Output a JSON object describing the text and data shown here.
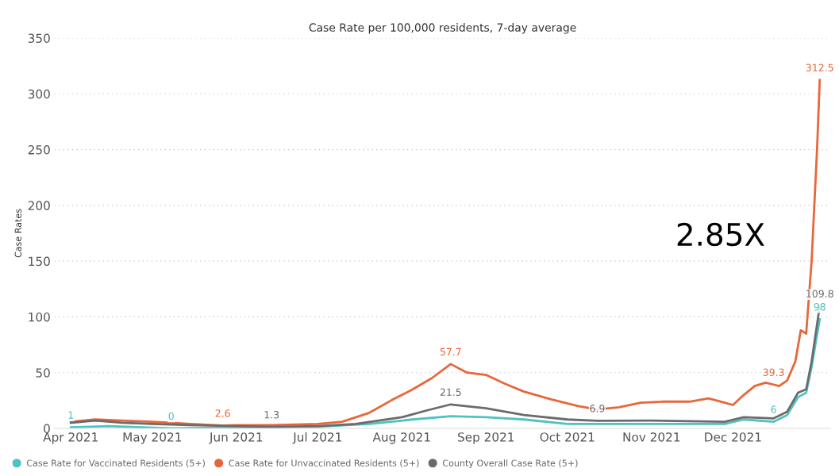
{
  "chart_data": {
    "type": "line",
    "title": "Case Rate per 100,000 residents, 7-day average",
    "ylabel": "Case Rates",
    "annotations": [
      "2.85X"
    ],
    "xlim": [
      "2021-03-26",
      "2022-01-06"
    ],
    "ylim": [
      0,
      350
    ],
    "yticks": [
      0,
      50,
      100,
      150,
      200,
      250,
      300,
      350
    ],
    "xticks": [
      {
        "value": "2021-04-01",
        "label": "Apr 2021"
      },
      {
        "value": "2021-05-01",
        "label": "May 2021"
      },
      {
        "value": "2021-06-01",
        "label": "Jun 2021"
      },
      {
        "value": "2021-07-01",
        "label": "Jul 2021"
      },
      {
        "value": "2021-08-01",
        "label": "Aug 2021"
      },
      {
        "value": "2021-09-01",
        "label": "Sep 2021"
      },
      {
        "value": "2021-10-01",
        "label": "Oct 2021"
      },
      {
        "value": "2021-11-01",
        "label": "Nov 2021"
      },
      {
        "value": "2021-12-01",
        "label": "Dec 2021"
      }
    ],
    "grid": "y",
    "legend": "bottom left",
    "marker": "none",
    "line_style": "solid",
    "series": [
      {
        "name": "Case Rate for Vaccinated Residents (5+)",
        "color": "#4ec3c0",
        "x": [
          "2021-04-01",
          "2021-04-15",
          "2021-05-08",
          "2021-06-01",
          "2021-07-01",
          "2021-07-20",
          "2021-08-05",
          "2021-08-19",
          "2021-09-01",
          "2021-09-15",
          "2021-10-01",
          "2021-11-01",
          "2021-11-28",
          "2021-12-05",
          "2021-12-16",
          "2021-12-21",
          "2021-12-25",
          "2021-12-28",
          "2021-12-30",
          "2022-01-02"
        ],
        "values": [
          1,
          2,
          0,
          1,
          1.5,
          4,
          8,
          11,
          10,
          8,
          4,
          4,
          4,
          8,
          6,
          12,
          28,
          32,
          55,
          98
        ],
        "value_labels": [
          "1",
          null,
          "0",
          null,
          null,
          null,
          null,
          null,
          null,
          null,
          null,
          null,
          null,
          null,
          "6",
          null,
          null,
          null,
          null,
          "98"
        ]
      },
      {
        "name": "Case Rate for Unvaccinated Residents (5+)",
        "color": "#e8673a",
        "x": [
          "2021-04-01",
          "2021-04-10",
          "2021-04-20",
          "2021-05-01",
          "2021-05-08",
          "2021-05-15",
          "2021-05-27",
          "2021-06-01",
          "2021-06-14",
          "2021-07-01",
          "2021-07-10",
          "2021-07-20",
          "2021-07-28",
          "2021-08-05",
          "2021-08-12",
          "2021-08-19",
          "2021-08-25",
          "2021-09-01",
          "2021-09-08",
          "2021-09-15",
          "2021-09-25",
          "2021-10-05",
          "2021-10-12",
          "2021-10-20",
          "2021-10-28",
          "2021-11-05",
          "2021-11-15",
          "2021-11-22",
          "2021-11-28",
          "2021-12-01",
          "2021-12-05",
          "2021-12-09",
          "2021-12-13",
          "2021-12-16",
          "2021-12-18",
          "2021-12-21",
          "2021-12-24",
          "2021-12-26",
          "2021-12-28",
          "2021-12-30",
          "2022-01-01",
          "2022-01-02"
        ],
        "values": [
          6,
          8,
          7,
          6,
          5,
          4,
          2.6,
          3,
          3,
          4,
          6,
          14,
          25,
          35,
          45,
          57.7,
          50,
          48,
          40,
          33,
          26,
          20,
          17,
          19,
          23,
          24,
          24,
          27,
          23,
          21,
          30,
          38,
          41,
          39.3,
          38,
          43,
          60,
          88,
          85,
          150,
          250,
          312.5
        ],
        "value_labels": [
          null,
          null,
          null,
          null,
          null,
          null,
          "2.6",
          null,
          null,
          null,
          null,
          null,
          null,
          null,
          null,
          "57.7",
          null,
          null,
          null,
          null,
          null,
          null,
          null,
          null,
          null,
          null,
          null,
          null,
          null,
          null,
          null,
          null,
          null,
          "39.3",
          null,
          null,
          null,
          null,
          null,
          null,
          null,
          "312.5"
        ]
      },
      {
        "name": "County Overall Case Rate (5+)",
        "color": "#6b6b6b",
        "x": [
          "2021-04-01",
          "2021-04-10",
          "2021-04-20",
          "2021-05-01",
          "2021-05-15",
          "2021-06-01",
          "2021-06-14",
          "2021-07-01",
          "2021-07-15",
          "2021-08-01",
          "2021-08-10",
          "2021-08-19",
          "2021-09-01",
          "2021-09-15",
          "2021-10-01",
          "2021-10-12",
          "2021-11-01",
          "2021-11-28",
          "2021-12-05",
          "2021-12-16",
          "2021-12-21",
          "2021-12-25",
          "2021-12-28",
          "2021-12-30",
          "2022-01-02"
        ],
        "values": [
          5,
          7,
          5,
          4,
          3,
          2,
          1.3,
          2,
          4,
          10,
          16,
          21.5,
          18,
          12,
          8,
          6.9,
          7,
          6,
          10,
          9,
          15,
          32,
          35,
          60,
          109.8
        ],
        "value_labels": [
          null,
          null,
          null,
          null,
          null,
          null,
          "1.3",
          null,
          null,
          null,
          null,
          "21.5",
          null,
          null,
          null,
          "6.9",
          null,
          null,
          null,
          null,
          null,
          null,
          null,
          null,
          "109.8"
        ]
      }
    ]
  }
}
